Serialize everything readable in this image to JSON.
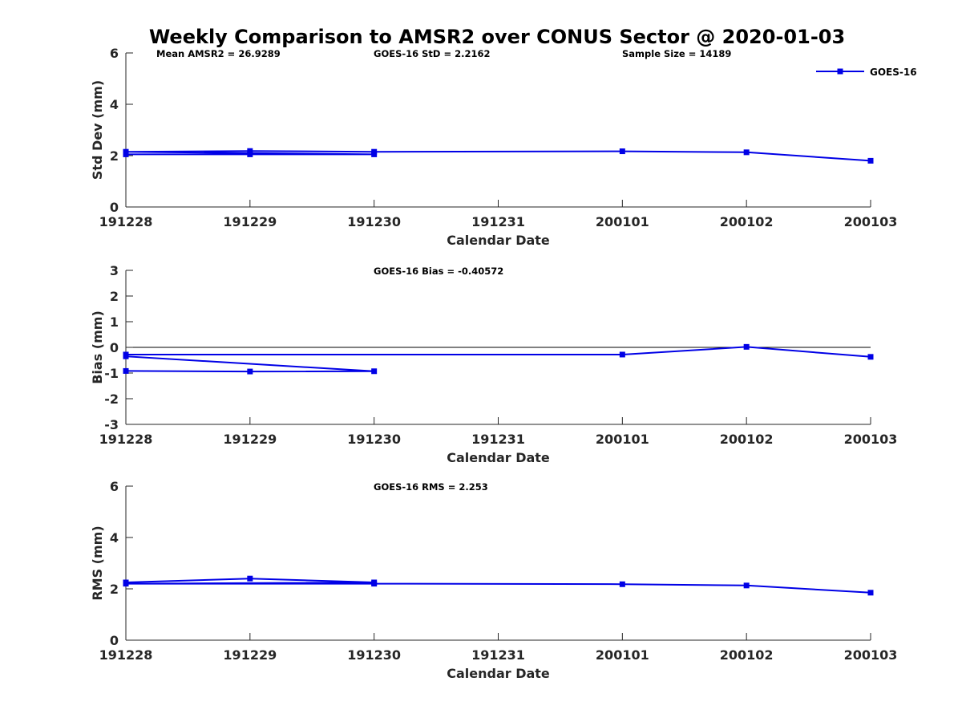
{
  "title": "Weekly Comparison to AMSR2 over CONUS Sector @ 2020-01-03",
  "colors": {
    "series": "#0000e6",
    "axis": "#262626",
    "zero_line": "#000000"
  },
  "legend": {
    "label": "GOES-16",
    "placement": "top-right"
  },
  "chart_data": [
    {
      "type": "line",
      "panel": "std",
      "xlabel": "Calendar Date",
      "ylabel": "Std Dev (mm)",
      "ylim": [
        0,
        6
      ],
      "yticks": [
        0,
        2,
        4,
        6
      ],
      "categories": [
        "191228",
        "191229",
        "191230",
        "191231",
        "200101",
        "200102",
        "200103"
      ],
      "annotations": [
        "Mean AMSR2 = 26.9289",
        "GOES-16 StD = 2.2162",
        "Sample Size = 14189"
      ],
      "series": [
        {
          "name": "GOES-16",
          "points": [
            [
              0,
              2.05
            ],
            [
              1,
              2.05
            ],
            [
              2,
              2.05
            ],
            [
              0,
              2.15
            ],
            [
              1,
              2.18
            ],
            [
              2,
              2.15
            ],
            [
              4,
              2.17
            ],
            [
              5,
              2.13
            ],
            [
              6,
              1.8
            ]
          ]
        }
      ]
    },
    {
      "type": "line",
      "panel": "bias",
      "xlabel": "Calendar Date",
      "ylabel": "Bias (mm)",
      "ylim": [
        -3,
        3
      ],
      "yticks": [
        -3,
        -2,
        -1,
        0,
        1,
        2,
        3
      ],
      "categories": [
        "191228",
        "191229",
        "191230",
        "191231",
        "200101",
        "200102",
        "200103"
      ],
      "annotations": [
        "GOES-16 Bias  = -0.40572"
      ],
      "zero_line": true,
      "series": [
        {
          "name": "GOES-16",
          "points": [
            [
              0,
              -0.92
            ],
            [
              1,
              -0.94
            ],
            [
              2,
              -0.93
            ],
            [
              0,
              -0.35
            ],
            [
              0,
              -0.28
            ],
            [
              4,
              -0.28
            ],
            [
              5,
              0.02
            ],
            [
              6,
              -0.37
            ]
          ]
        }
      ]
    },
    {
      "type": "line",
      "panel": "rms",
      "xlabel": "Calendar Date",
      "ylabel": "RMS (mm)",
      "ylim": [
        0,
        6
      ],
      "yticks": [
        0,
        2,
        4,
        6
      ],
      "categories": [
        "191228",
        "191229",
        "191230",
        "191231",
        "200101",
        "200102",
        "200103"
      ],
      "annotations": [
        "GOES-16 RMS = 2.253"
      ],
      "series": [
        {
          "name": "GOES-16",
          "points": [
            [
              0,
              2.25
            ],
            [
              1,
              2.4
            ],
            [
              2,
              2.25
            ],
            [
              0,
              2.2
            ],
            [
              2,
              2.2
            ],
            [
              4,
              2.18
            ],
            [
              5,
              2.13
            ],
            [
              6,
              1.85
            ]
          ]
        }
      ]
    }
  ]
}
